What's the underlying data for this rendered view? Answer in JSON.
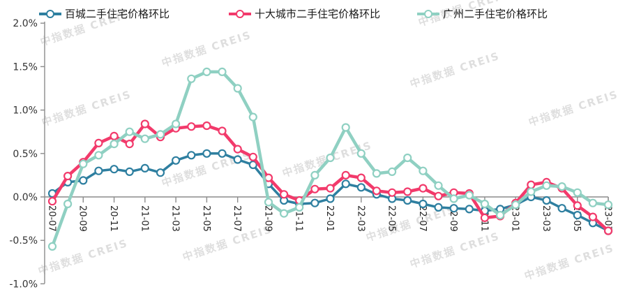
{
  "legend": {
    "items": [
      {
        "label": "百城二手住宅价格环比",
        "color": "#2e7fa0"
      },
      {
        "label": "十大城市二手住宅价格环比",
        "color": "#f23a6b"
      },
      {
        "label": "广州二手住宅价格环比",
        "color": "#8fd0c2"
      }
    ]
  },
  "watermark": {
    "text": "中指数据 CREIS"
  },
  "axis": {
    "y_tick_labels": [
      "2.0%",
      "1.5%",
      "1.0%",
      "0.5%",
      "0.0%",
      "-0.5%",
      "-1.0%"
    ],
    "x_tick_labels": [
      "20-07",
      "20-09",
      "20-11",
      "21-01",
      "21-03",
      "21-05",
      "21-07",
      "21-09",
      "21-11",
      "22-01",
      "22-03",
      "22-05",
      "22-07",
      "22-09",
      "22-11",
      "23-01",
      "23-03",
      "23-05",
      "23-07"
    ]
  },
  "chart_data": {
    "type": "line",
    "unit": "%",
    "title": "",
    "xlabel": "",
    "ylabel": "",
    "ylim": [
      -1.0,
      2.0
    ],
    "y_tick_step": 0.5,
    "grid": false,
    "legend_position": "top",
    "marker_style": "white-filled-circle",
    "x_label_every": 2,
    "x": [
      "20-07",
      "20-08",
      "20-09",
      "20-10",
      "20-11",
      "20-12",
      "21-01",
      "21-02",
      "21-03",
      "21-04",
      "21-05",
      "21-06",
      "21-07",
      "21-08",
      "21-09",
      "21-10",
      "21-11",
      "21-12",
      "22-01",
      "22-02",
      "22-03",
      "22-04",
      "22-05",
      "22-06",
      "22-07",
      "22-08",
      "22-09",
      "22-10",
      "22-11",
      "22-12",
      "23-01",
      "23-02",
      "23-03",
      "23-04",
      "23-05",
      "23-06",
      "23-07"
    ],
    "series": [
      {
        "name": "百城二手住宅价格环比",
        "color": "#2e7fa0",
        "line_width": 3.5,
        "values": [
          0.04,
          0.17,
          0.19,
          0.3,
          0.32,
          0.29,
          0.33,
          0.28,
          0.42,
          0.48,
          0.5,
          0.5,
          0.43,
          0.37,
          0.15,
          -0.04,
          -0.08,
          -0.07,
          -0.02,
          0.15,
          0.11,
          0.03,
          -0.02,
          -0.04,
          -0.08,
          -0.12,
          -0.13,
          -0.14,
          -0.16,
          -0.14,
          -0.09,
          0.0,
          -0.04,
          -0.13,
          -0.21,
          -0.3,
          -0.39
        ]
      },
      {
        "name": "十大城市二手住宅价格环比",
        "color": "#f23a6b",
        "line_width": 4.5,
        "values": [
          -0.05,
          0.24,
          0.4,
          0.62,
          0.7,
          0.61,
          0.84,
          0.69,
          0.79,
          0.81,
          0.82,
          0.76,
          0.55,
          0.46,
          0.22,
          0.03,
          -0.04,
          0.09,
          0.1,
          0.25,
          0.22,
          0.07,
          0.05,
          0.06,
          0.1,
          0.01,
          0.05,
          0.04,
          -0.24,
          -0.22,
          -0.07,
          0.14,
          0.17,
          0.1,
          -0.1,
          -0.23,
          -0.39
        ]
      },
      {
        "name": "广州二手住宅价格环比",
        "color": "#8fd0c2",
        "line_width": 4.5,
        "values": [
          -0.57,
          -0.08,
          0.38,
          0.48,
          0.61,
          0.75,
          0.67,
          0.72,
          0.84,
          1.36,
          1.44,
          1.44,
          1.25,
          0.92,
          -0.06,
          -0.19,
          -0.12,
          0.25,
          0.45,
          0.8,
          0.5,
          0.27,
          0.29,
          0.45,
          0.3,
          0.13,
          -0.02,
          0.02,
          -0.08,
          -0.21,
          -0.09,
          0.06,
          0.13,
          0.12,
          0.05,
          -0.07,
          -0.09
        ]
      }
    ]
  }
}
